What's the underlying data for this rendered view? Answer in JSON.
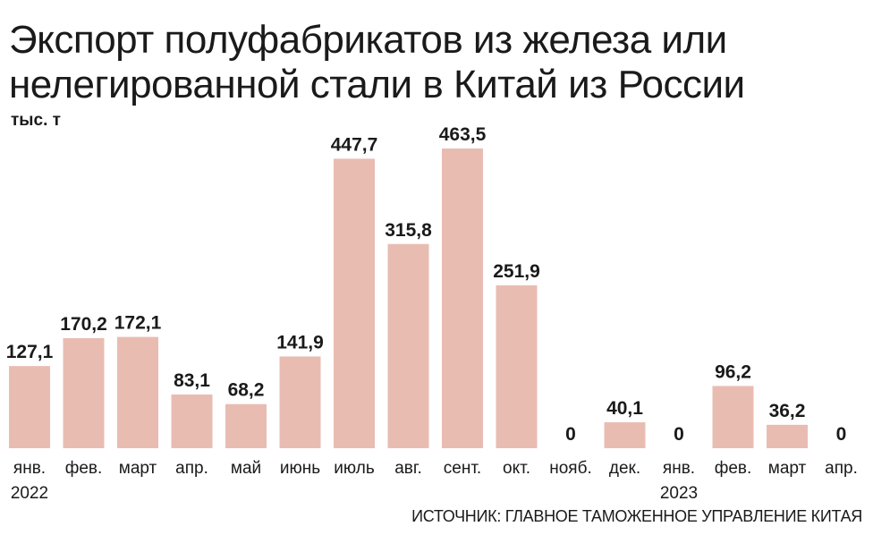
{
  "chart_data": {
    "type": "bar",
    "title": "Экспорт полуфабрикатов из железа или нелегированной стали в Китай из России",
    "unit": "тыс. т",
    "categories": [
      "янв.",
      "фев.",
      "март",
      "апр.",
      "май",
      "июнь",
      "июль",
      "авг.",
      "сент.",
      "окт.",
      "нояб.",
      "дек.",
      "янв.",
      "фев.",
      "март",
      "апр."
    ],
    "values": [
      127.1,
      170.2,
      172.1,
      83.1,
      68.2,
      141.9,
      447.7,
      315.8,
      463.5,
      251.9,
      0,
      40.1,
      0,
      96.2,
      36.2,
      0
    ],
    "value_labels": [
      "127,1",
      "170,2",
      "172,1",
      "83,1",
      "68,2",
      "141,9",
      "447,7",
      "315,8",
      "463,5",
      "251,9",
      "0",
      "40,1",
      "0",
      "96,2",
      "36,2",
      "0"
    ],
    "years": [
      {
        "label": "2022",
        "start_index": 0
      },
      {
        "label": "2023",
        "start_index": 12
      }
    ],
    "bar_color": "#e9bcb2",
    "grid": false,
    "source": "ИСТОЧНИК: ГЛАВНОЕ ТАМОЖЕННОЕ УПРАВЛЕНИЕ КИТАЯ"
  }
}
